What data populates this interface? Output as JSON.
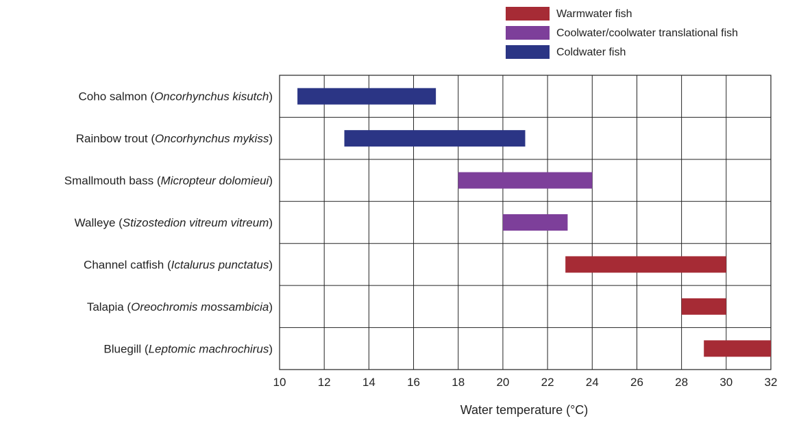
{
  "chart_data": {
    "type": "bar",
    "subtype": "horizontal-range",
    "xlabel": "Water temperature (°C)",
    "xlim": [
      10,
      32
    ],
    "x_ticks": [
      10,
      12,
      14,
      16,
      18,
      20,
      22,
      24,
      26,
      28,
      30,
      32
    ],
    "grid": true,
    "legend_position": "top-right",
    "legend": [
      {
        "name": "Warmwater fish",
        "color": "#a62b35"
      },
      {
        "name": "Coolwater/coolwater translational fish",
        "color": "#7d3f9a"
      },
      {
        "name": "Coldwater fish",
        "color": "#2b3585"
      }
    ],
    "series": [
      {
        "common": "Coho salmon",
        "scientific": "Oncorhynchus kisutch",
        "start": 10.8,
        "end": 17.0,
        "group": 2
      },
      {
        "common": "Rainbow trout",
        "scientific": "Oncorhynchus mykiss",
        "start": 12.9,
        "end": 21.0,
        "group": 2
      },
      {
        "common": "Smallmouth bass",
        "scientific": "Micropteur dolomieui",
        "start": 18.0,
        "end": 24.0,
        "group": 1
      },
      {
        "common": "Walleye",
        "scientific": "Stizostedion vitreum vitreum",
        "start": 20.0,
        "end": 22.9,
        "group": 1
      },
      {
        "common": "Channel catfish",
        "scientific": "Ictalurus punctatus",
        "start": 22.8,
        "end": 30.0,
        "group": 0
      },
      {
        "common": "Talapia",
        "scientific": "Oreochromis mossambicia",
        "start": 28.0,
        "end": 30.0,
        "group": 0
      },
      {
        "common": "Bluegill",
        "scientific": "Leptomic machrochirus",
        "start": 29.0,
        "end": 32.0,
        "group": 0
      }
    ]
  }
}
